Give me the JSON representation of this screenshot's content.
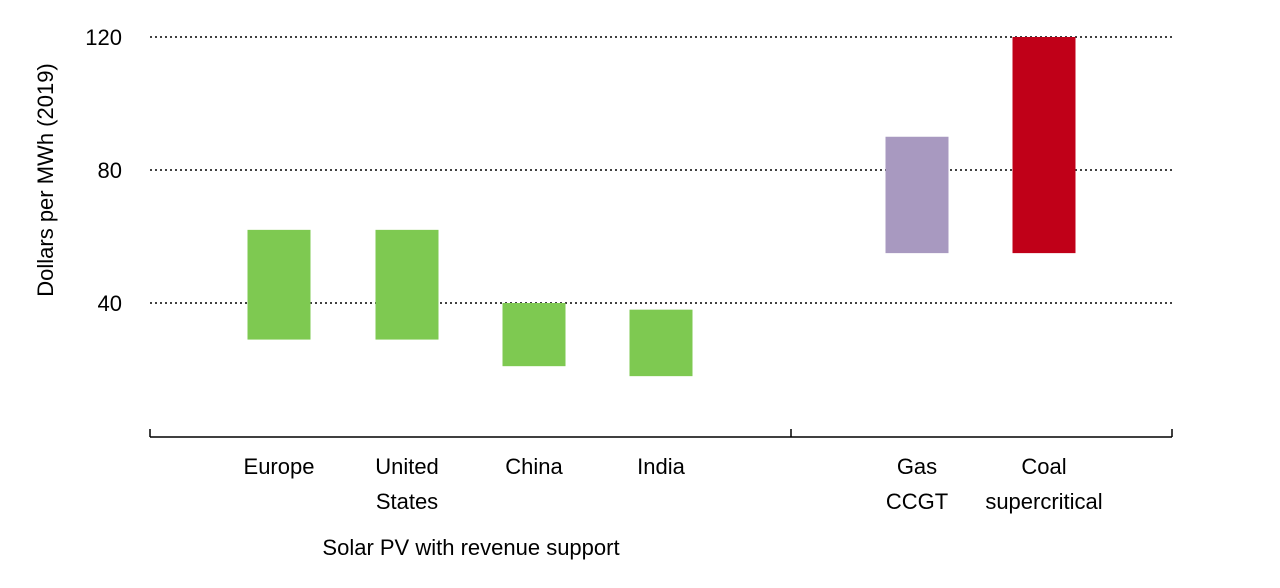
{
  "chart_data": {
    "type": "bar",
    "subtype": "floating-range",
    "ylabel": "Dollars per MWh (2019)",
    "ylim": [
      0,
      120
    ],
    "yticks": [
      40,
      80,
      120
    ],
    "grid": true,
    "groups": [
      {
        "label": "Solar PV with revenue support",
        "categories": [
          {
            "label": [
              "Europe"
            ],
            "low": 29,
            "high": 62,
            "color": "#7EC951"
          },
          {
            "label": [
              "United",
              "States"
            ],
            "low": 29,
            "high": 62,
            "color": "#7EC951"
          },
          {
            "label": [
              "China"
            ],
            "low": 21,
            "high": 40,
            "color": "#7EC951"
          },
          {
            "label": [
              "India"
            ],
            "low": 18,
            "high": 38,
            "color": "#7EC951"
          }
        ]
      },
      {
        "label": "",
        "categories": [
          {
            "label": [
              "Gas",
              "CCGT"
            ],
            "low": 55,
            "high": 90,
            "color": "#A899C0"
          },
          {
            "label": [
              "Coal",
              "supercritical"
            ],
            "low": 55,
            "high": 120,
            "color": "#C00018"
          }
        ]
      }
    ]
  }
}
